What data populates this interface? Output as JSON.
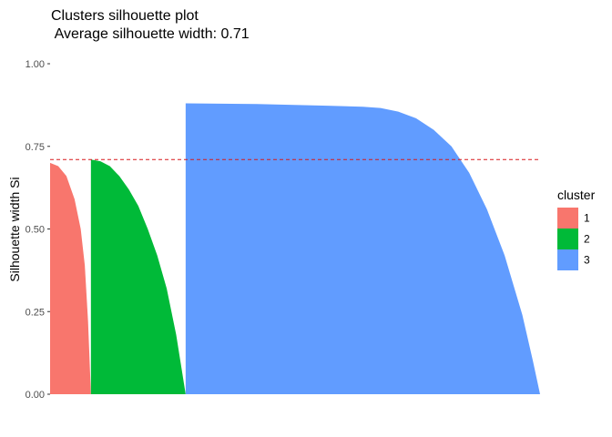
{
  "chart_data": {
    "type": "area",
    "title": "Clusters silhouette plot",
    "subtitle": "Average silhouette width: 0.71",
    "xlabel": "",
    "ylabel": "Silhouette width Si",
    "ylim": [
      0,
      1
    ],
    "y_ticks": [
      "0.00",
      "0.25",
      "0.50",
      "0.75",
      "1.00"
    ],
    "y_tick_values": [
      0,
      0.25,
      0.5,
      0.75,
      1.0
    ],
    "grid": false,
    "legend": {
      "title": "cluster",
      "position": "right"
    },
    "reference_line": {
      "value": 0.71,
      "color": "#d7191c",
      "style": "dashed"
    },
    "observations_total": 300,
    "series": [
      {
        "name": "1",
        "color": "#F8766D",
        "x_start": 0,
        "count": 25,
        "profile": [
          [
            0,
            0.7
          ],
          [
            0.2,
            0.69
          ],
          [
            0.4,
            0.66
          ],
          [
            0.6,
            0.59
          ],
          [
            0.75,
            0.5
          ],
          [
            0.85,
            0.39
          ],
          [
            0.93,
            0.22
          ],
          [
            1.0,
            0.0
          ]
        ]
      },
      {
        "name": "2",
        "color": "#00BA38",
        "x_start": 25,
        "count": 58,
        "profile": [
          [
            0,
            0.71
          ],
          [
            0.1,
            0.705
          ],
          [
            0.2,
            0.69
          ],
          [
            0.3,
            0.66
          ],
          [
            0.4,
            0.62
          ],
          [
            0.5,
            0.57
          ],
          [
            0.6,
            0.5
          ],
          [
            0.7,
            0.42
          ],
          [
            0.8,
            0.32
          ],
          [
            0.9,
            0.18
          ],
          [
            1.0,
            0.0
          ]
        ]
      },
      {
        "name": "3",
        "color": "#619CFF",
        "x_start": 83,
        "count": 217,
        "profile": [
          [
            0,
            0.88
          ],
          [
            0.2,
            0.878
          ],
          [
            0.4,
            0.873
          ],
          [
            0.5,
            0.87
          ],
          [
            0.55,
            0.866
          ],
          [
            0.6,
            0.855
          ],
          [
            0.65,
            0.835
          ],
          [
            0.7,
            0.8
          ],
          [
            0.75,
            0.75
          ],
          [
            0.8,
            0.67
          ],
          [
            0.85,
            0.56
          ],
          [
            0.9,
            0.42
          ],
          [
            0.95,
            0.24
          ],
          [
            0.98,
            0.1
          ],
          [
            1.0,
            0.0
          ]
        ]
      }
    ]
  }
}
